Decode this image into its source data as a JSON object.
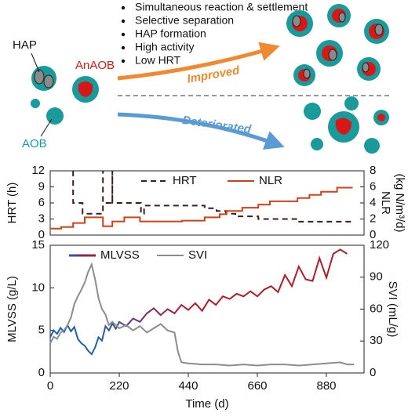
{
  "diagram": {
    "bullets": [
      "Simultaneous reaction & settlement",
      "Selective separation",
      "HAP formation",
      "High activity",
      "Low HRT"
    ],
    "hap": "HAP",
    "anaob": "AnAOB",
    "aob": "AOB",
    "improved": "Improved",
    "deteriorated": "Deteriorated"
  },
  "chart_data": [
    {
      "type": "line",
      "ylabel": "HRT (h)",
      "y2label": [
        "NLR",
        "(kg N/m³/d)"
      ],
      "xlim": [
        0,
        1000
      ],
      "ylim": [
        0,
        12
      ],
      "yticks": [
        0,
        3,
        6,
        9,
        12
      ],
      "y2lim": [
        0,
        8
      ],
      "y2ticks": [
        0,
        2,
        4,
        6,
        8
      ],
      "series": [
        {
          "name": "HRT",
          "color": "#3b1f1f",
          "linestyle": "dashed",
          "x": [
            73,
            73,
            103,
            103,
            168,
            168,
            168,
            198,
            198,
            198,
            289,
            289,
            299,
            299,
            492,
            492,
            530,
            530,
            560,
            560,
            590,
            590,
            663,
            663,
            788,
            788,
            960
          ],
          "values": [
            12,
            6,
            6,
            4,
            4,
            12,
            6,
            6,
            12,
            6,
            6,
            4,
            4,
            5.5,
            5.5,
            5,
            5,
            4.5,
            4.5,
            4,
            4,
            3.5,
            3.5,
            3,
            3,
            2.5,
            2.5
          ]
        },
        {
          "name": "NLR",
          "color": "#d2401a",
          "linestyle": "solid",
          "axis": "y2",
          "x": [
            0,
            35,
            35,
            73,
            73,
            110,
            110,
            168,
            168,
            198,
            198,
            236,
            236,
            286,
            286,
            420,
            420,
            492,
            492,
            540,
            540,
            562,
            562,
            612,
            612,
            663,
            663,
            700,
            700,
            788,
            788,
            826,
            826,
            863,
            863,
            914,
            914,
            964
          ],
          "values": [
            0.8,
            0.8,
            1.0,
            1.0,
            1.5,
            1.5,
            2.2,
            2.2,
            1.1,
            1.1,
            1.7,
            1.7,
            2.2,
            2.2,
            1.7,
            1.7,
            1.8,
            1.8,
            2.2,
            2.2,
            2.6,
            2.6,
            3.0,
            3.0,
            3.4,
            3.4,
            3.8,
            3.8,
            4.2,
            4.2,
            4.6,
            4.6,
            5.0,
            5.0,
            5.4,
            5.4,
            5.9,
            5.9
          ]
        }
      ]
    },
    {
      "type": "line",
      "xlabel": "Time (d)",
      "ylabel": "MLVSS (g/L)",
      "y2label": [
        "SVI (mL/g)"
      ],
      "xlim": [
        0,
        1000
      ],
      "xticks": [
        0,
        220,
        440,
        660,
        880
      ],
      "ylim": [
        0,
        15
      ],
      "yticks": [
        0,
        5,
        10,
        15
      ],
      "y2lim": [
        0,
        120
      ],
      "y2ticks": [
        0,
        30,
        60,
        90,
        120
      ],
      "series": [
        {
          "name": "MLVSS",
          "colors": [
            "#1f5fb0",
            "#7a2a6e",
            "#b01c28"
          ],
          "linestyle": "solid",
          "x": [
            0,
            11,
            22,
            33,
            44,
            55,
            66,
            77,
            88,
            99,
            110,
            121,
            132,
            143,
            154,
            165,
            176,
            187,
            198,
            209,
            220,
            242,
            264,
            286,
            308,
            330,
            352,
            374,
            396,
            418,
            440,
            462,
            484,
            506,
            528,
            550,
            572,
            594,
            616,
            638,
            660,
            682,
            704,
            726,
            748,
            770,
            792,
            814,
            836,
            858,
            880,
            902,
            924,
            946
          ],
          "values": [
            4.2,
            5.0,
            4.6,
            5.3,
            4.8,
            5.6,
            4.9,
            5.4,
            4.0,
            3.5,
            3.2,
            2.6,
            2.2,
            3.0,
            4.2,
            3.8,
            5.5,
            5.0,
            5.8,
            5.2,
            6.0,
            5.5,
            6.4,
            6.0,
            7.0,
            7.6,
            6.8,
            7.5,
            7.0,
            8.0,
            7.4,
            8.2,
            7.3,
            8.6,
            8.0,
            9.0,
            8.7,
            9.3,
            9.0,
            9.6,
            9.0,
            9.8,
            10.2,
            9.5,
            11.5,
            10.2,
            12.5,
            11.0,
            10.8,
            13.5,
            11.2,
            14.0,
            14.5,
            14.0
          ]
        },
        {
          "name": "SVI",
          "color": "#8c8c8c",
          "linestyle": "solid",
          "axis": "y2",
          "x": [
            0,
            11,
            22,
            33,
            44,
            55,
            66,
            77,
            88,
            99,
            110,
            121,
            132,
            143,
            154,
            165,
            176,
            187,
            198,
            220,
            242,
            264,
            286,
            308,
            330,
            352,
            374,
            396,
            407,
            418,
            440,
            484,
            528,
            572,
            616,
            660,
            704,
            748,
            792,
            836,
            880,
            924,
            946,
            968
          ],
          "values": [
            28,
            34,
            32,
            38,
            40,
            45,
            52,
            65,
            72,
            78,
            85,
            95,
            102,
            88,
            70,
            60,
            55,
            45,
            48,
            42,
            45,
            40,
            44,
            38,
            42,
            46,
            40,
            38,
            20,
            10,
            9,
            8,
            8,
            7,
            8,
            7,
            8,
            8,
            7,
            8,
            9,
            10,
            8,
            8
          ]
        }
      ]
    }
  ]
}
